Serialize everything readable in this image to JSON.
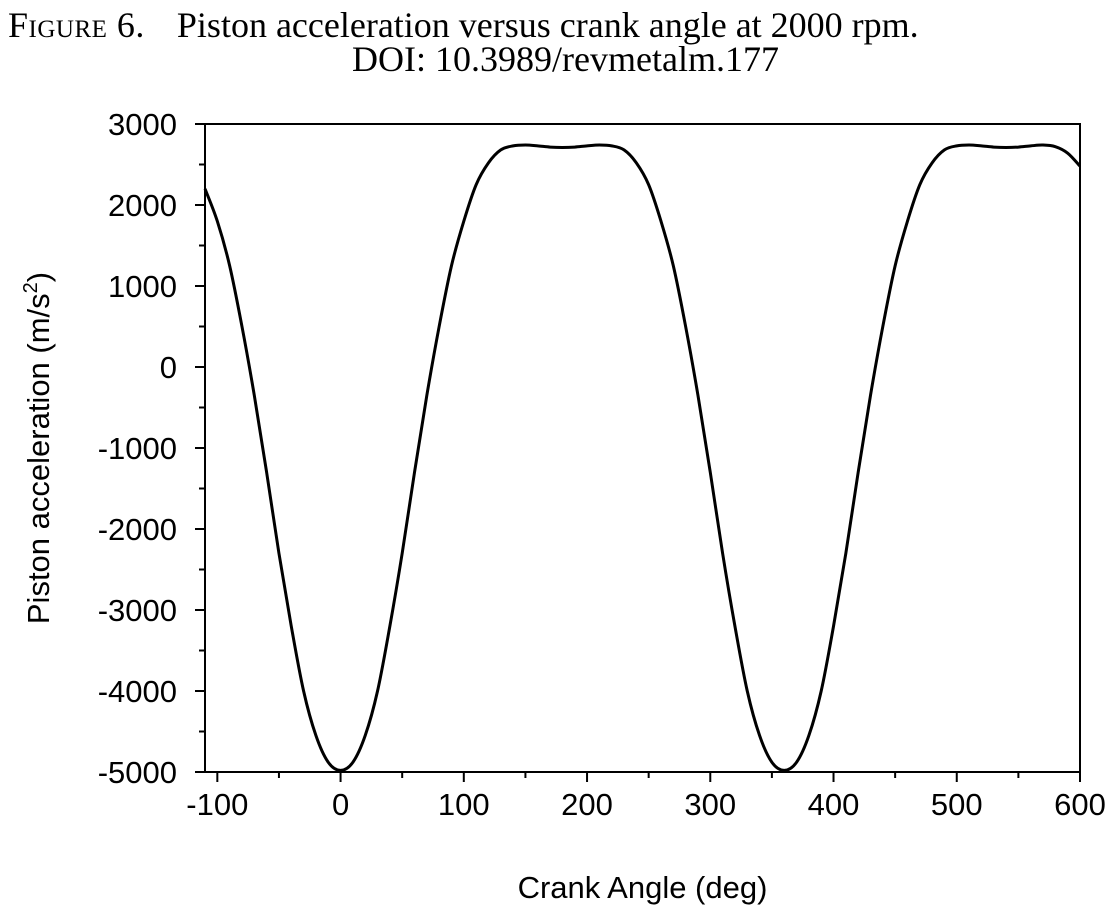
{
  "caption": {
    "figure_label": "Figure 6.",
    "text": "Piston acceleration versus crank angle at 2000 rpm.",
    "doi": "DOI: 10.3989/revmetalm.177"
  },
  "chart_data": {
    "type": "line",
    "title": "",
    "xlabel": "Crank Angle (deg)",
    "ylabel_main": "Piston acceleration (m/s",
    "ylabel_sup": "2",
    "ylabel_tail": ")",
    "xlim": [
      -110,
      600
    ],
    "ylim": [
      -5000,
      3000
    ],
    "grid": false,
    "x_ticks": [
      -100,
      0,
      100,
      200,
      300,
      400,
      500,
      600
    ],
    "x_tick_labels": [
      "-100",
      "0",
      "100",
      "200",
      "300",
      "400",
      "500",
      "600"
    ],
    "y_ticks": [
      3000,
      2000,
      1000,
      0,
      -1000,
      -2000,
      -3000,
      -4000,
      -5000
    ],
    "y_tick_labels": [
      "3000",
      "2000",
      "1000",
      "0",
      "-1000",
      "-2000",
      "-3000",
      "-4000",
      "-5000"
    ],
    "series": [
      {
        "color": "#000000",
        "x": [
          -110,
          -100,
          -90,
          -80,
          -70,
          -60,
          -50,
          -40,
          -30,
          -20,
          -10,
          0,
          10,
          20,
          30,
          40,
          50,
          60,
          70,
          80,
          90,
          100,
          110,
          120,
          130,
          140,
          150,
          160,
          170,
          180,
          190,
          200,
          210,
          220,
          230,
          240,
          250,
          260,
          270,
          280,
          290,
          300,
          310,
          320,
          330,
          340,
          350,
          360,
          370,
          380,
          390,
          400,
          410,
          420,
          430,
          440,
          450,
          460,
          470,
          480,
          490,
          500,
          510,
          520,
          530,
          540,
          550,
          560,
          570,
          580,
          590,
          600
        ],
        "y": [
          2200,
          1800,
          1250,
          500,
          -350,
          -1300,
          -2300,
          -3200,
          -4000,
          -4550,
          -4880,
          -4980,
          -4880,
          -4550,
          -4000,
          -3200,
          -2300,
          -1300,
          -350,
          500,
          1250,
          1800,
          2250,
          2520,
          2680,
          2730,
          2740,
          2730,
          2715,
          2710,
          2715,
          2730,
          2740,
          2730,
          2680,
          2520,
          2250,
          1800,
          1250,
          500,
          -350,
          -1300,
          -2300,
          -3200,
          -4000,
          -4550,
          -4880,
          -4980,
          -4880,
          -4550,
          -4000,
          -3200,
          -2300,
          -1300,
          -350,
          500,
          1250,
          1800,
          2250,
          2520,
          2680,
          2730,
          2740,
          2730,
          2715,
          2710,
          2715,
          2730,
          2740,
          2720,
          2640,
          2480
        ]
      }
    ]
  }
}
